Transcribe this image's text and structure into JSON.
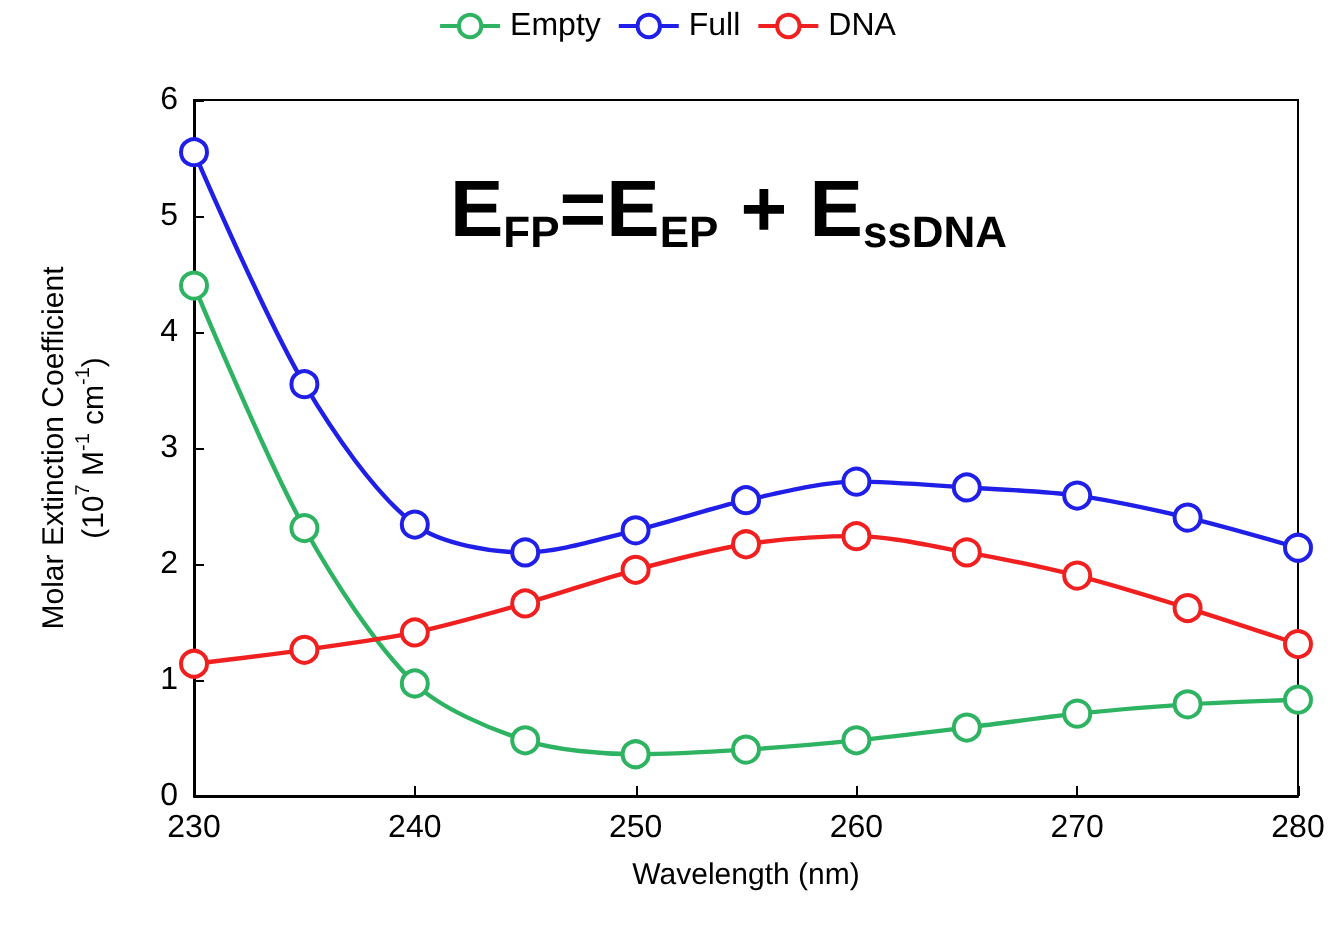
{
  "chart_data": {
    "type": "line",
    "xlabel": "Wavelength (nm)",
    "ylabel": "Molar Extinction Coefficient\n(10$^{7}$ M$^{-1}$ cm$^{-1}$)",
    "x": [
      230,
      235,
      240,
      245,
      250,
      255,
      260,
      265,
      270,
      275,
      280
    ],
    "series": [
      {
        "name": "Empty",
        "color": "#2eb362",
        "values": [
          4.4,
          2.31,
          0.97,
          0.48,
          0.36,
          0.4,
          0.48,
          0.59,
          0.71,
          0.79,
          0.83
        ]
      },
      {
        "name": "Full",
        "color": "#1f1fe8",
        "values": [
          5.55,
          3.55,
          2.34,
          2.1,
          2.29,
          2.55,
          2.71,
          2.66,
          2.59,
          2.4,
          2.14
        ]
      },
      {
        "name": "DNA",
        "color": "#f02020",
        "values": [
          1.14,
          1.26,
          1.41,
          1.66,
          1.95,
          2.17,
          2.24,
          2.1,
          1.9,
          1.62,
          1.31
        ]
      }
    ],
    "xlim": [
      230,
      280
    ],
    "xticks": [
      230,
      240,
      250,
      260,
      270,
      280
    ],
    "ylim": [
      0,
      6
    ],
    "yticks": [
      0,
      1,
      2,
      3,
      4,
      5,
      6
    ],
    "legend": "top",
    "marker": "circle",
    "line_style": "solid",
    "grid": false,
    "annotations": [
      "E$_{FP}$=E$_{EP}$ + E$_{ssDNA}$"
    ]
  }
}
